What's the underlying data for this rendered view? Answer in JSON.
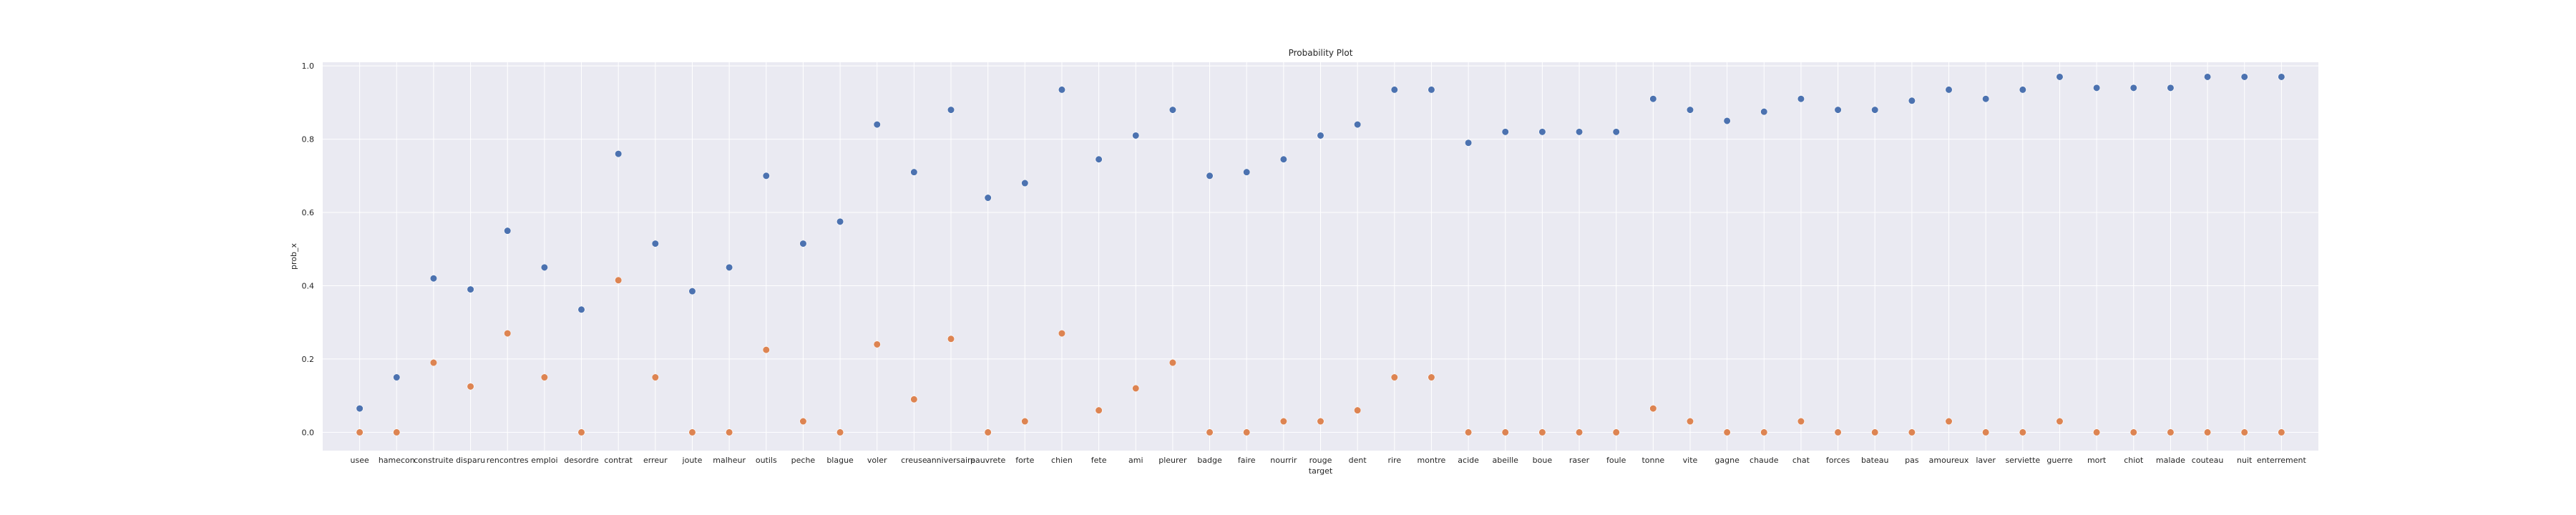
{
  "chart_data": {
    "type": "scatter",
    "title": "Probability Plot",
    "xlabel": "target",
    "ylabel": "prob_x",
    "ylim": [
      -0.05,
      1.01
    ],
    "yticks": [
      "0.0",
      "0.2",
      "0.4",
      "0.6",
      "0.8",
      "1.0"
    ],
    "ytick_values": [
      0.0,
      0.2,
      0.4,
      0.6,
      0.8,
      1.0
    ],
    "grid": true,
    "categories": [
      "usee",
      "hamecon",
      "construite",
      "disparu",
      "rencontres",
      "emploi",
      "desordre",
      "contrat",
      "erreur",
      "joute",
      "malheur",
      "outils",
      "peche",
      "blague",
      "voler",
      "creuse",
      "anniversaire",
      "pauvrete",
      "forte",
      "chien",
      "fete",
      "ami",
      "pleurer",
      "badge",
      "faire",
      "nourrir",
      "rouge",
      "dent",
      "rire",
      "montre",
      "acide",
      "abeille",
      "boue",
      "raser",
      "foule",
      "tonne",
      "vite",
      "gagne",
      "chaude",
      "chat",
      "forces",
      "bateau",
      "pas",
      "amoureux",
      "laver",
      "serviette",
      "guerre",
      "mort",
      "chiot",
      "malade",
      "couteau",
      "nuit",
      "enterrement"
    ],
    "series": [
      {
        "color": "#4c72b0",
        "values": [
          0.065,
          0.15,
          0.42,
          0.39,
          0.55,
          0.45,
          0.335,
          0.76,
          0.515,
          0.385,
          0.45,
          0.7,
          0.515,
          0.575,
          0.84,
          0.71,
          0.88,
          0.64,
          0.68,
          0.935,
          0.745,
          0.81,
          0.88,
          0.7,
          0.71,
          0.745,
          0.81,
          0.84,
          0.935,
          0.935,
          0.79,
          0.82,
          0.82,
          0.82,
          0.82,
          0.91,
          0.88,
          0.85,
          0.875,
          0.91,
          0.88,
          0.88,
          0.905,
          0.935,
          0.91,
          0.935,
          0.97,
          0.94,
          0.94,
          0.94,
          0.97,
          0.97,
          0.97
        ]
      },
      {
        "color": "#dd8452",
        "values": [
          0.0,
          0.0,
          0.19,
          0.125,
          0.27,
          0.15,
          0.0,
          0.415,
          0.15,
          0.0,
          0.0,
          0.225,
          0.03,
          0.0,
          0.24,
          0.09,
          0.255,
          0.0,
          0.03,
          0.27,
          0.06,
          0.12,
          0.19,
          0.0,
          0.0,
          0.03,
          0.03,
          0.06,
          0.15,
          0.15,
          0.0,
          0.0,
          0.0,
          0.0,
          0.0,
          0.065,
          0.03,
          0.0,
          0.0,
          0.03,
          0.0,
          0.0,
          0.0,
          0.03,
          0.0,
          0.0,
          0.03,
          0.0,
          0.0,
          0.0,
          0.0,
          0.0,
          0.0
        ]
      }
    ],
    "colors": {
      "plot_background": "#eaeaf2",
      "grid": "#ffffff"
    }
  }
}
